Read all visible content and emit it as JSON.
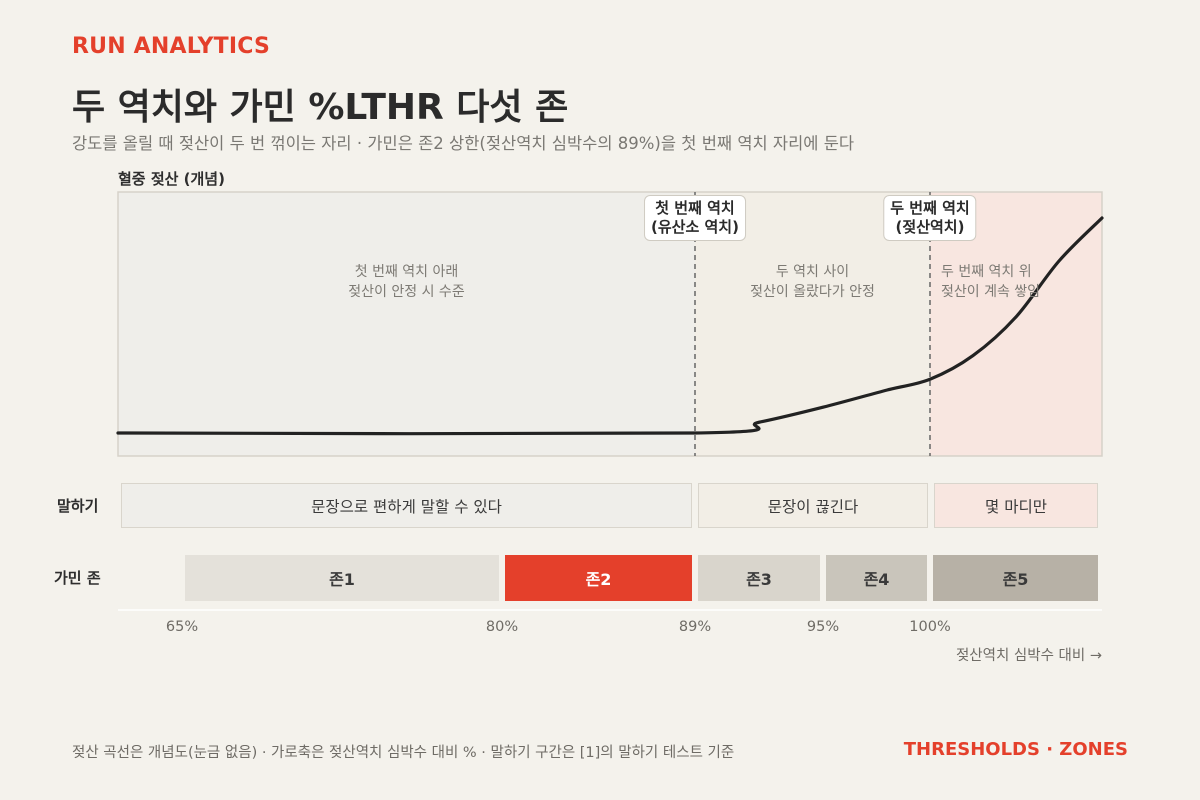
{
  "header": {
    "kicker": "RUN ANALYTICS",
    "title": "두 역치와 가민 %LTHR 다섯 존",
    "subtitle": "강도를 올릴 때 젖산이 두 번 꺾이는 자리 · 가민은 존2 상한(젖산역치 심박수의 89%)을 첫 번째 역치 자리에 둔다"
  },
  "chart": {
    "y_label": "혈중 젖산 (개념)",
    "markers": [
      {
        "line1": "첫 번째 역치",
        "line2": "(유산소 역치)"
      },
      {
        "line1": "두 번째 역치",
        "line2": "(젖산역치)"
      }
    ],
    "regions": [
      {
        "line1": "첫 번째 역치 아래",
        "line2": "젖산이 안정 시 수준",
        "color": "#efeeea"
      },
      {
        "line1": "두 역치 사이",
        "line2": "젖산이 올랐다가 안정",
        "color": "#f2eee6"
      },
      {
        "line1": "두 번째 역치 위",
        "line2": "젖산이 계속 쌓임",
        "color": "#f8e6e0"
      }
    ]
  },
  "talk_row": {
    "label": "말하기",
    "segments": [
      {
        "text": "문장으로 편하게 말할 수 있다",
        "color": "#efeeea"
      },
      {
        "text": "문장이 끊긴다",
        "color": "#f2eee6"
      },
      {
        "text": "몇 마디만",
        "color": "#f8e6e0"
      }
    ]
  },
  "zone_row": {
    "label": "가민 존",
    "zones": [
      {
        "name": "존1",
        "color": "#e4e1da",
        "text_color": "#3a3a3a"
      },
      {
        "name": "존2",
        "color": "#e4402b",
        "text_color": "#ffffff"
      },
      {
        "name": "존3",
        "color": "#d9d5cc",
        "text_color": "#3a3a3a"
      },
      {
        "name": "존4",
        "color": "#c9c5bb",
        "text_color": "#3a3a3a"
      },
      {
        "name": "존5",
        "color": "#b7b1a6",
        "text_color": "#3a3a3a"
      }
    ]
  },
  "chart_data": {
    "type": "line",
    "title": "두 역치와 가민 %LTHR 다섯 존",
    "xlabel": "젖산역치 심박수 대비 →",
    "ylabel": "혈중 젖산 (개념)",
    "x_ticks": [
      "65%",
      "80%",
      "89%",
      "95%",
      "100%"
    ],
    "xlim": [
      60,
      108
    ],
    "thresholds": [
      89,
      100
    ],
    "zone_bounds": [
      {
        "zone": "존1",
        "from": 65,
        "to": 80
      },
      {
        "zone": "존2",
        "from": 80,
        "to": 89
      },
      {
        "zone": "존3",
        "from": 89,
        "to": 95
      },
      {
        "zone": "존4",
        "from": 95,
        "to": 100
      },
      {
        "zone": "존5",
        "from": 100,
        "to": 108
      }
    ],
    "series": [
      {
        "values_description_free": true,
        "x": [
          60,
          89,
          92,
          95,
          98,
          100,
          102,
          104,
          106,
          108
        ],
        "y": [
          0,
          0,
          0.05,
          0.12,
          0.2,
          0.25,
          0.36,
          0.54,
          0.8,
          1.0
        ]
      }
    ]
  },
  "footer": {
    "note": "젖산 곡선은 개념도(눈금 없음) · 가로축은 젖산역치 심박수 대비 % · 말하기 구간은 [1]의 말하기 테스트 기준",
    "brand": "THRESHOLDS · ZONES"
  },
  "colors": {
    "accent": "#e4402b",
    "curve": "#222222",
    "background": "#f4f2ec"
  }
}
